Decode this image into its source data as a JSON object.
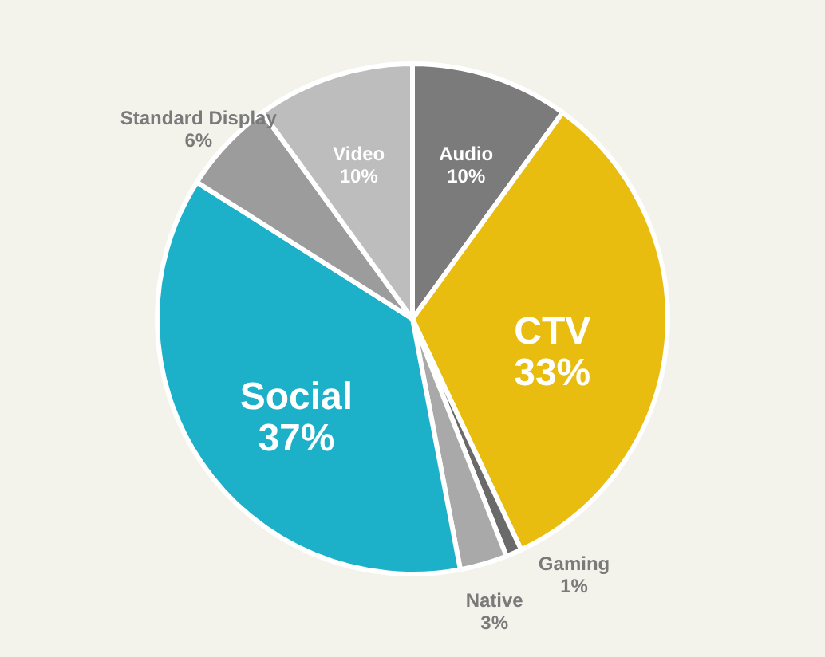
{
  "chart_data": {
    "type": "pie",
    "categories": [
      "Audio",
      "CTV",
      "Gaming",
      "Native",
      "Social",
      "Standard Display",
      "Video"
    ],
    "values": [
      10,
      33,
      1,
      3,
      37,
      6,
      10
    ],
    "colors": [
      "#7b7b7b",
      "#e8bd10",
      "#6a6a6a",
      "#a9a9a9",
      "#1db1c9",
      "#9c9c9c",
      "#bdbdbd"
    ],
    "value_labels": [
      "10%",
      "33%",
      "1%",
      "3%",
      "37%",
      "6%",
      "10%"
    ]
  }
}
